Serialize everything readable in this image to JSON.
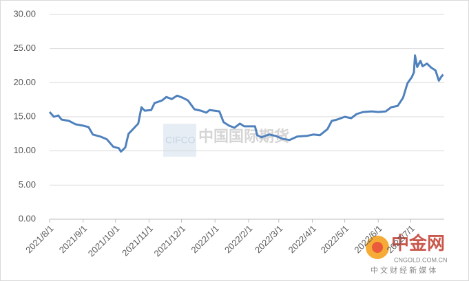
{
  "chart_data": {
    "type": "line",
    "x": [
      "2021/8/1",
      "2021/8/5",
      "2021/8/9",
      "2021/8/12",
      "2021/8/19",
      "2021/8/25",
      "2021/9/1",
      "2021/9/6",
      "2021/9/10",
      "2021/9/17",
      "2021/9/23",
      "2021/9/29",
      "2021/10/4",
      "2021/10/6",
      "2021/10/10",
      "2021/10/13",
      "2021/10/16",
      "2021/10/22",
      "2021/10/25",
      "2021/10/28",
      "2021/11/3",
      "2021/11/6",
      "2021/11/13",
      "2021/11/17",
      "2021/11/22",
      "2021/11/27",
      "2021/12/2",
      "2021/12/7",
      "2021/12/13",
      "2021/12/19",
      "2021/12/24",
      "2021/12/27",
      "2022/1/5",
      "2022/1/9",
      "2022/1/14",
      "2022/1/19",
      "2022/1/24",
      "2022/1/28",
      "2022/2/7",
      "2022/2/9",
      "2022/2/13",
      "2022/2/20",
      "2022/2/26",
      "2022/3/4",
      "2022/3/11",
      "2022/3/18",
      "2022/3/27",
      "2022/4/2",
      "2022/4/8",
      "2022/4/15",
      "2022/4/19",
      "2022/4/24",
      "2022/5/1",
      "2022/5/7",
      "2022/5/12",
      "2022/5/18",
      "2022/5/26",
      "2022/6/1",
      "2022/6/8",
      "2022/6/13",
      "2022/6/19",
      "2022/6/24",
      "2022/6/28",
      "2022/7/2",
      "2022/7/4",
      "2022/7/5",
      "2022/7/7",
      "2022/7/10",
      "2022/7/12",
      "2022/7/16",
      "2022/7/20",
      "2022/7/24",
      "2022/7/27",
      "2022/7/29",
      "2022/7/31"
    ],
    "series": [
      {
        "color": "#4f81bd",
        "values": [
          15.7,
          15.0,
          15.2,
          14.6,
          14.4,
          13.9,
          13.7,
          13.5,
          12.4,
          12.1,
          11.7,
          10.6,
          10.4,
          9.9,
          10.5,
          12.5,
          13.0,
          14.0,
          16.4,
          15.9,
          16.0,
          17.0,
          17.4,
          17.9,
          17.6,
          18.1,
          17.8,
          17.4,
          16.1,
          15.9,
          15.6,
          16.0,
          15.8,
          14.2,
          13.7,
          13.4,
          14.0,
          13.6,
          13.6,
          12.3,
          12.0,
          12.4,
          12.2,
          11.8,
          11.6,
          12.1,
          12.2,
          12.4,
          12.3,
          13.2,
          14.4,
          14.6,
          15.0,
          14.8,
          15.4,
          15.7,
          15.8,
          15.7,
          15.8,
          16.4,
          16.6,
          17.8,
          19.9,
          20.8,
          21.5,
          24.0,
          22.3,
          23.2,
          22.4,
          22.8,
          22.2,
          21.8,
          20.3,
          20.8,
          21.2
        ]
      }
    ],
    "xlim": [
      "2021/8/1",
      "2022/8/1"
    ],
    "xticks": [
      "2021/8/1",
      "2021/9/1",
      "2021/10/1",
      "2021/11/1",
      "2021/12/1",
      "2022/1/1",
      "2022/2/1",
      "2022/3/1",
      "2022/4/1",
      "2022/5/1",
      "2022/6/1",
      "2022/7/1"
    ],
    "ylim": [
      0,
      30
    ],
    "yticks": [
      {
        "value": 0,
        "label": "0.00"
      },
      {
        "value": 5,
        "label": "5.00"
      },
      {
        "value": 10,
        "label": "10.00"
      },
      {
        "value": 15,
        "label": "15.00"
      },
      {
        "value": 20,
        "label": "20.00"
      },
      {
        "value": 25,
        "label": "25.00"
      },
      {
        "value": 30,
        "label": "30.00"
      }
    ],
    "grid": true,
    "watermarks": [
      "CIFCO",
      "中国国际期货",
      "中金网",
      "CNGOLD.COM.CN",
      "中 文 财 经 新 媒 体"
    ]
  }
}
